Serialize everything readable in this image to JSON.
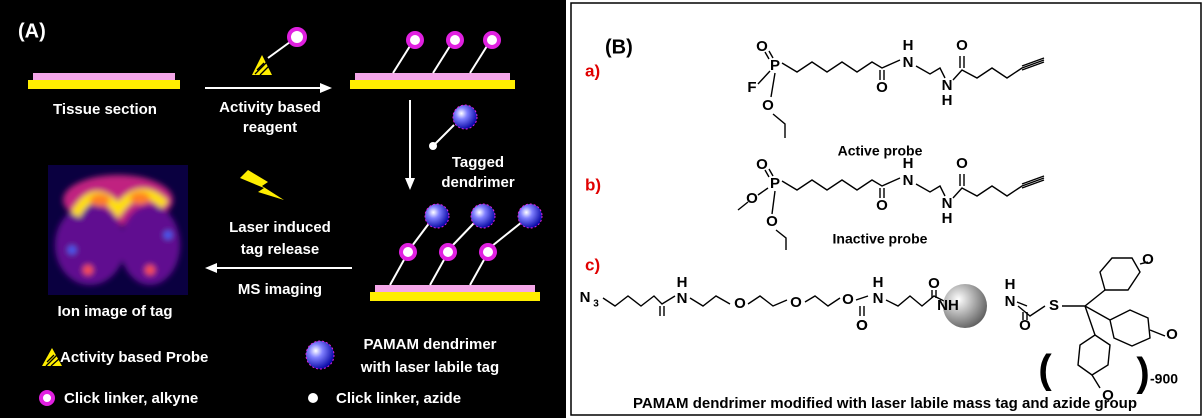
{
  "panel_a": {
    "label": "(A)",
    "tissue_section": "Tissue section",
    "reagent_step": [
      "Activity based",
      "reagent"
    ],
    "tagged_dendrimer": [
      "Tagged",
      "dendrimer"
    ],
    "laser_step": [
      "Laser induced",
      "tag release"
    ],
    "ms_imaging": "MS imaging",
    "ion_image": "Ion image of tag",
    "legend": {
      "probe": "Activity based Probe",
      "dendrimer": [
        "PAMAM dendrimer",
        "with laser labile tag"
      ],
      "alkyne": "Click linker, alkyne",
      "azide": "Click linker, azide"
    }
  },
  "panel_b": {
    "label": "(B)",
    "a": {
      "label": "a)",
      "name": "Active probe",
      "atoms": [
        "O",
        "P",
        "F",
        "O",
        "H",
        "N",
        "O",
        "O",
        "N",
        "H"
      ]
    },
    "b": {
      "label": "b)",
      "name": "Inactive probe",
      "atoms": [
        "O",
        "P",
        "O",
        "O",
        "H",
        "N",
        "O",
        "O",
        "N",
        "H"
      ]
    },
    "c": {
      "label": "c)",
      "atoms": [
        "N",
        "3",
        "H",
        "N",
        "O",
        "O",
        "O",
        "O",
        "H",
        "N",
        "O",
        "O",
        "NH",
        "H",
        "N",
        "O",
        "S",
        "O",
        "O",
        "O",
        "(",
        ")"
      ],
      "repeat": "-900"
    },
    "caption": "PAMAM dendrimer modified with laser labile mass tag and azide group"
  }
}
